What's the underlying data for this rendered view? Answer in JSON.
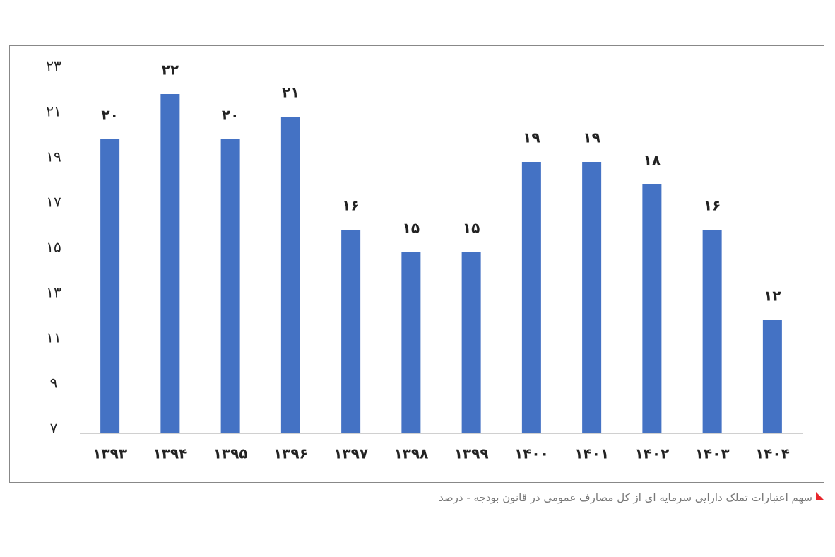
{
  "chart_data": {
    "type": "bar",
    "title": "سهم اعتبارات تملک دارایی سرمایه ای از کل مصارف عمومی در قانون بودجه - درصد",
    "categories": [
      "۱۳۹۳",
      "۱۳۹۴",
      "۱۳۹۵",
      "۱۳۹۶",
      "۱۳۹۷",
      "۱۳۹۸",
      "۱۳۹۹",
      "۱۴۰۰",
      "۱۴۰۱",
      "۱۴۰۲",
      "۱۴۰۳",
      "۱۴۰۴"
    ],
    "values": [
      20,
      22,
      20,
      21,
      16,
      15,
      15,
      19,
      19,
      18,
      16,
      12
    ],
    "value_labels": [
      "۲۰",
      "۲۲",
      "۲۰",
      "۲۱",
      "۱۶",
      "۱۵",
      "۱۵",
      "۱۹",
      "۱۹",
      "۱۸",
      "۱۶",
      "۱۲"
    ],
    "color": "#4472c4",
    "ylim": [
      7,
      23
    ],
    "yticks": [
      {
        "value": 7,
        "label": "۷"
      },
      {
        "value": 9,
        "label": "۹"
      },
      {
        "value": 11,
        "label": "۱۱"
      },
      {
        "value": 13,
        "label": "۱۳"
      },
      {
        "value": 15,
        "label": "۱۵"
      },
      {
        "value": 17,
        "label": "۱۷"
      },
      {
        "value": 19,
        "label": "۱۹"
      },
      {
        "value": 21,
        "label": "۲۱"
      },
      {
        "value": 23,
        "label": "۲۳"
      }
    ],
    "grid": false
  }
}
